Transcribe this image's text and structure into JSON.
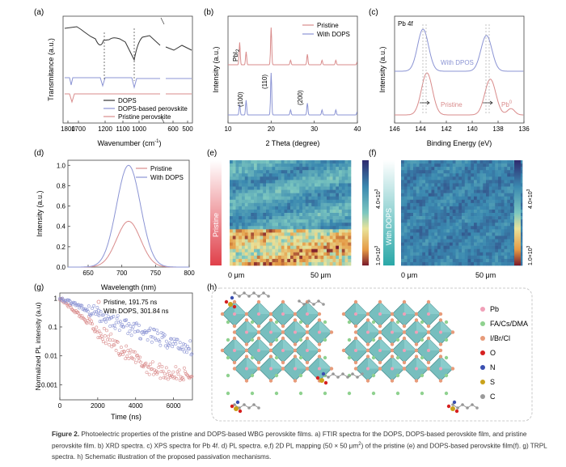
{
  "figure": {
    "panels": {
      "a": {
        "label": "(a)",
        "ylabel": "Transmitance (a.u.)",
        "xlabel": "Wavenumber (cm",
        "xlabel_sup": "-1",
        "xlabel_end": ")",
        "ticks": [
          "1800",
          "1700",
          "1200",
          "1100",
          "1000",
          "600",
          "500"
        ],
        "legend": [
          "DOPS",
          "DOPS-based perovskite",
          "Pristine perovskite"
        ]
      },
      "b": {
        "label": "(b)",
        "ylabel": "Intensity (a.u.)",
        "xlabel": "2 Theta (degree)",
        "ticks": [
          "10",
          "20",
          "30",
          "40"
        ],
        "legend": [
          "Pristine",
          "With DOPS"
        ],
        "annotations": {
          "pbi2": "PbI",
          "pbi2_sub": "2",
          "p100": "(100)",
          "p110": "(110)",
          "p200": "(200)"
        }
      },
      "c": {
        "label": "(c)",
        "title": "Pb 4f",
        "ylabel": "Intensity (a.u.)",
        "xlabel": "Binding Energy (eV)",
        "ticks": [
          "146",
          "144",
          "142",
          "140",
          "138",
          "136"
        ],
        "annotations": {
          "with": "With DPOS",
          "pristine": "Pristine",
          "pb0": "Pb",
          "pb0_sup": "0"
        }
      },
      "d": {
        "label": "(d)",
        "ylabel": "Intensity (a.u.)",
        "xlabel": "Wavelength (nm)",
        "xticks": [
          "650",
          "700",
          "750",
          "800"
        ],
        "yticks": [
          "0.0",
          "0.2",
          "0.4",
          "0.6",
          "0.8",
          "1.0"
        ],
        "legend": [
          "Pristine",
          "With DOPS"
        ]
      },
      "e": {
        "label": "(e)",
        "side_label": "Pristine",
        "scale_top": "4.0×10",
        "scale_top_sup": "3",
        "scale_bot": "1.0×10",
        "scale_bot_sup": "3",
        "x0": "0 μm",
        "x1": "50 μm"
      },
      "f": {
        "label": "(f)",
        "side_label": "With DOPS",
        "scale_top": "4.0×10",
        "scale_top_sup": "3",
        "scale_bot": "1.0×10",
        "scale_bot_sup": "3",
        "x0": "0 μm",
        "x1": "50 μm"
      },
      "g": {
        "label": "(g)",
        "ylabel": "Normalized PL intensity (a.u)",
        "xlabel": "Time (ns)",
        "xticks": [
          "0",
          "2000",
          "4000",
          "6000"
        ],
        "yticks": [
          "1",
          "0.1",
          "0.01",
          "0.001"
        ],
        "legend": [
          "Pristine, 191.75 ns",
          "With DOPS, 301.84 ns"
        ]
      },
      "h": {
        "label": "(h)",
        "legend": [
          "Pb",
          "FA/Cs/DMA",
          "I/Br/Cl",
          "O",
          "N",
          "S",
          "C"
        ]
      }
    },
    "caption": {
      "head": "Figure 2.",
      "text": " Photoelectric properties of the pristine and DOPS-based WBG perovskite films. a) FTIR spectra for the DOPS, DOPS-based perovskite film, and pristine perovskite film. b) XRD spectra. c) XPS spectra for Pb 4f. d) PL spectra. e,f) 2D PL mapping (50 × 50 μm",
      "sup": "2",
      "text2": ") of the pristine (e) and DOPS-based perovskite film(f). g) TRPL spectra. h) Schematic illustration of the proposed passivation mechanisms."
    }
  },
  "colors": {
    "pristine": "#d98b8b",
    "dops": "#8b94d4",
    "black": "#333333",
    "pb": "#f0a0b8",
    "fa": "#8fd18f",
    "i": "#e79b7a",
    "o": "#d62020",
    "n": "#3a4fb0",
    "s": "#c9a21a",
    "c": "#9a9a9a",
    "octa": "#5fb3b3"
  },
  "chart_data": [
    {
      "panel": "d",
      "type": "line",
      "title": "",
      "xlabel": "Wavelength (nm)",
      "ylabel": "Intensity (a.u.)",
      "xlim": [
        620,
        800
      ],
      "ylim": [
        0,
        1.05
      ],
      "series": [
        {
          "name": "Pristine",
          "peak_nm": 710,
          "peak": 0.45,
          "fwhm_nm": 42
        },
        {
          "name": "With DOPS",
          "peak_nm": 710,
          "peak": 1.0,
          "fwhm_nm": 42
        }
      ]
    },
    {
      "panel": "g",
      "type": "scatter",
      "xlabel": "Time (ns)",
      "ylabel": "Normalized PL intensity (a.u)",
      "xlim": [
        0,
        7000
      ],
      "ylog": true,
      "ylim": [
        0.0003,
        1.5
      ],
      "series": [
        {
          "name": "Pristine, 191.75 ns",
          "tau_ns": 191.75,
          "floor": 0.002
        },
        {
          "name": "With DOPS, 301.84 ns",
          "tau_ns": 301.84,
          "floor": 0.009
        }
      ]
    }
  ]
}
